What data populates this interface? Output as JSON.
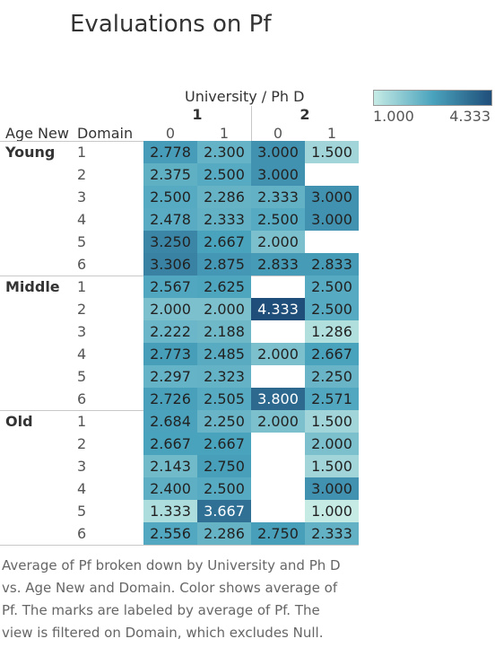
{
  "title": "Evaluations on Pf",
  "legend": {
    "min_label": "1.000",
    "max_label": "4.333",
    "min": 1.0,
    "max": 4.333,
    "colors": [
      "#c6ebe5",
      "#4aa3bd",
      "#1f4e7a"
    ]
  },
  "header": {
    "col_dims": "University / Ph D",
    "row_dim_age": "Age New",
    "row_dim_domain": "Domain"
  },
  "caption": "Average of Pf broken down by University and Ph D vs. Age New and Domain.  Color shows average of Pf.  The marks are labeled by average of Pf. The view is filtered on Domain, which excludes Null.",
  "chart_data": {
    "type": "heatmap",
    "title": "Evaluations on Pf",
    "measure": "Average of Pf",
    "columns": [
      {
        "university": "1",
        "phd": "0"
      },
      {
        "university": "1",
        "phd": "1"
      },
      {
        "university": "2",
        "phd": "0"
      },
      {
        "university": "2",
        "phd": "1"
      }
    ],
    "rows": [
      {
        "age": "Young",
        "domain": "1",
        "values": [
          2.778,
          2.3,
          3.0,
          1.5
        ]
      },
      {
        "age": "Young",
        "domain": "2",
        "values": [
          2.375,
          2.5,
          3.0,
          null
        ]
      },
      {
        "age": "Young",
        "domain": "3",
        "values": [
          2.5,
          2.286,
          2.333,
          3.0
        ]
      },
      {
        "age": "Young",
        "domain": "4",
        "values": [
          2.478,
          2.333,
          2.5,
          3.0
        ]
      },
      {
        "age": "Young",
        "domain": "5",
        "values": [
          3.25,
          2.667,
          2.0,
          null
        ]
      },
      {
        "age": "Young",
        "domain": "6",
        "values": [
          3.306,
          2.875,
          2.833,
          2.833
        ]
      },
      {
        "age": "Middle",
        "domain": "1",
        "values": [
          2.567,
          2.625,
          null,
          2.5
        ]
      },
      {
        "age": "Middle",
        "domain": "2",
        "values": [
          2.0,
          2.0,
          4.333,
          2.5
        ]
      },
      {
        "age": "Middle",
        "domain": "3",
        "values": [
          2.222,
          2.188,
          null,
          1.286
        ]
      },
      {
        "age": "Middle",
        "domain": "4",
        "values": [
          2.773,
          2.485,
          2.0,
          2.667
        ]
      },
      {
        "age": "Middle",
        "domain": "5",
        "values": [
          2.297,
          2.323,
          null,
          2.25
        ]
      },
      {
        "age": "Middle",
        "domain": "6",
        "values": [
          2.726,
          2.505,
          3.8,
          2.571
        ]
      },
      {
        "age": "Old",
        "domain": "1",
        "values": [
          2.684,
          2.25,
          2.0,
          1.5
        ]
      },
      {
        "age": "Old",
        "domain": "2",
        "values": [
          2.667,
          2.667,
          null,
          2.0
        ]
      },
      {
        "age": "Old",
        "domain": "3",
        "values": [
          2.143,
          2.75,
          null,
          1.5
        ]
      },
      {
        "age": "Old",
        "domain": "4",
        "values": [
          2.4,
          2.5,
          null,
          3.0
        ]
      },
      {
        "age": "Old",
        "domain": "5",
        "values": [
          1.333,
          3.667,
          null,
          1.0
        ]
      },
      {
        "age": "Old",
        "domain": "6",
        "values": [
          2.556,
          2.286,
          2.75,
          2.333
        ]
      }
    ]
  }
}
